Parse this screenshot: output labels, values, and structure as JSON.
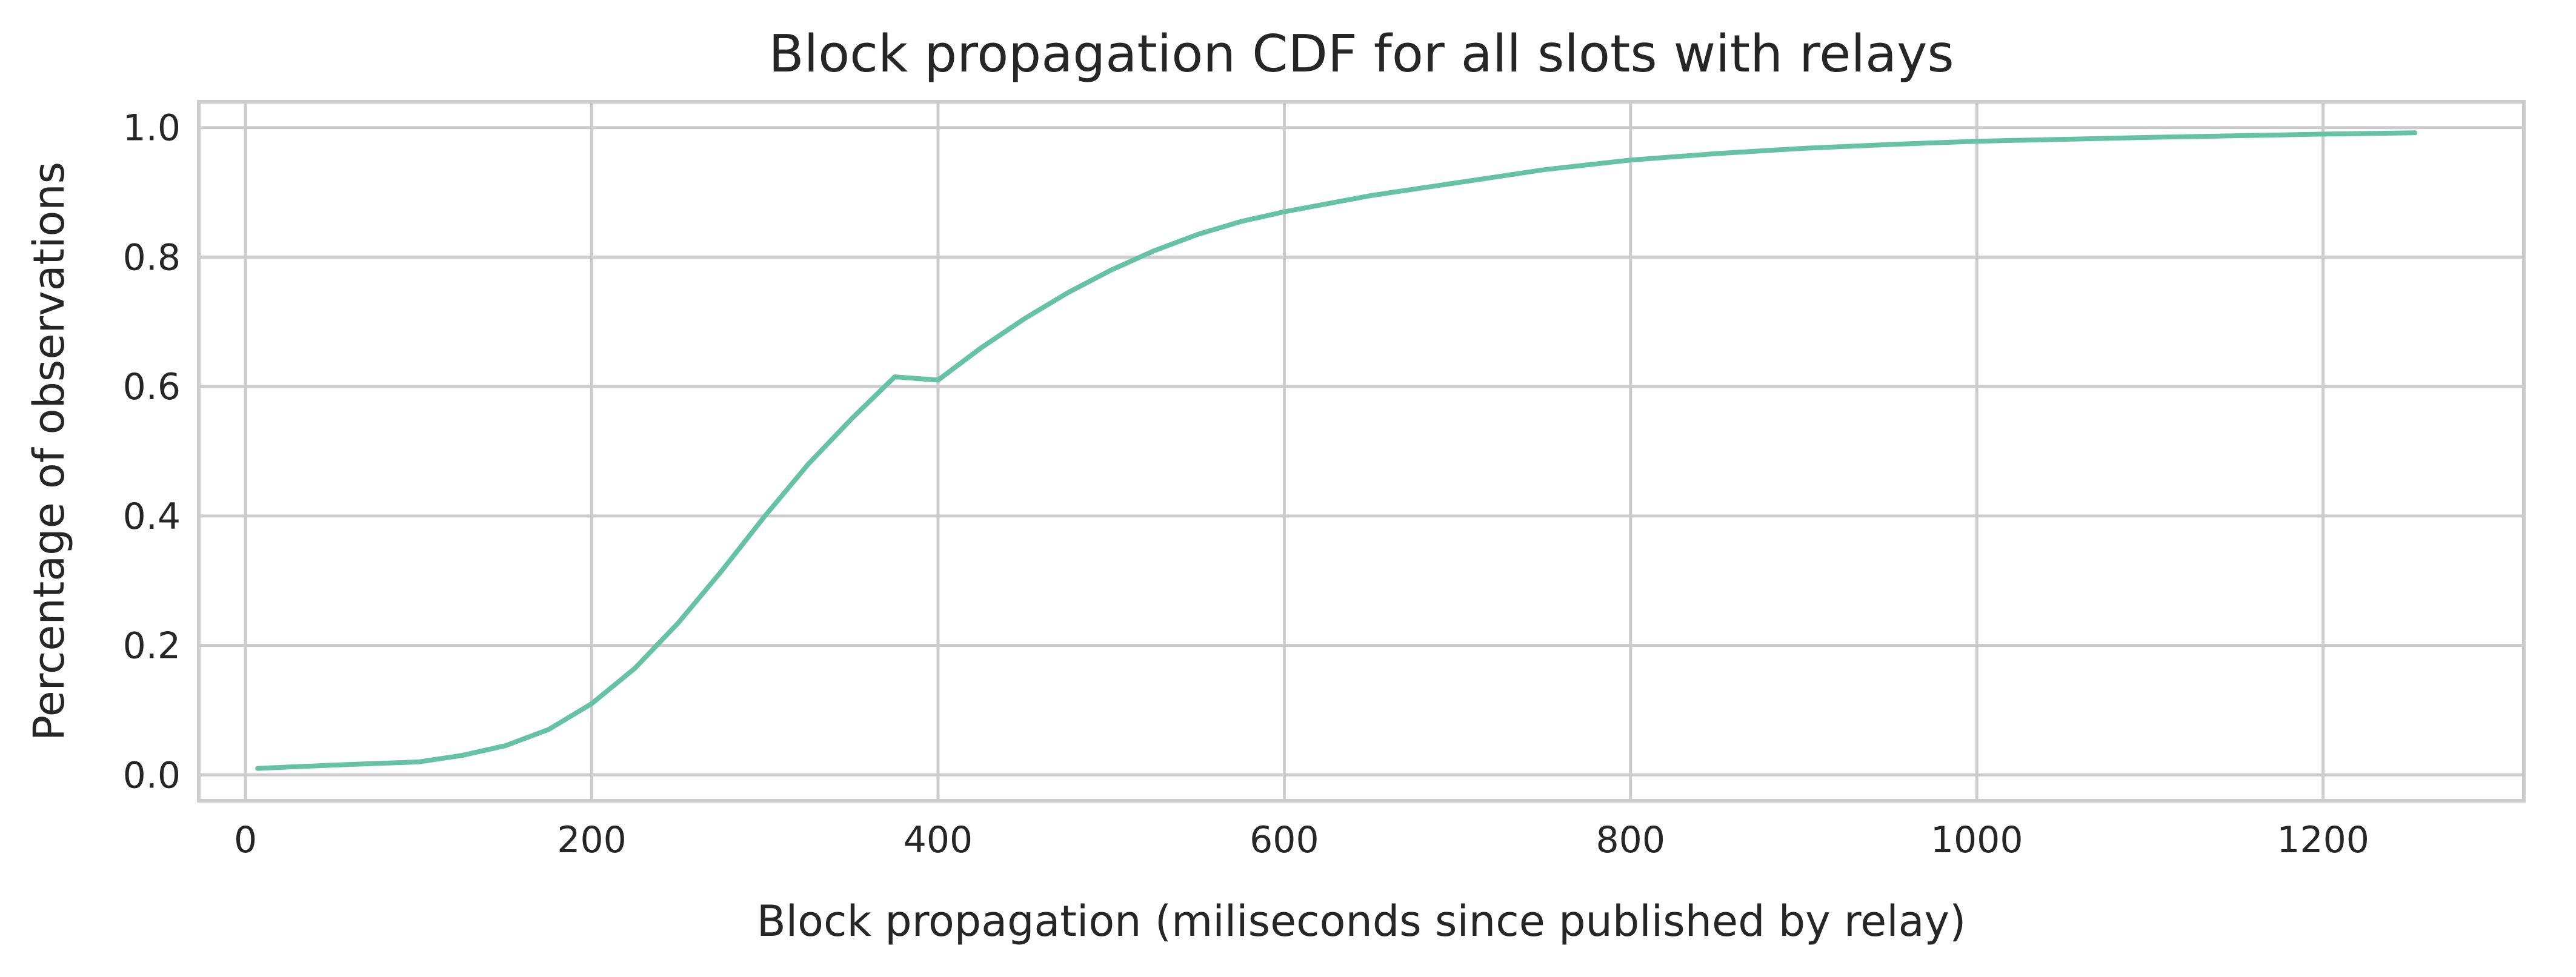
{
  "chart_data": {
    "type": "line",
    "title": "Block propagation CDF for all slots with relays",
    "xlabel": "Block propagation (miliseconds since published by relay)",
    "ylabel": "Percentage of observations",
    "xlim": [
      -27,
      1316
    ],
    "ylim": [
      -0.04,
      1.04
    ],
    "xticks": [
      0,
      200,
      400,
      600,
      800,
      1000,
      1200
    ],
    "xtick_labels": [
      "0",
      "200",
      "400",
      "600",
      "800",
      "1000",
      "1200"
    ],
    "yticks": [
      0.0,
      0.2,
      0.4,
      0.6,
      0.8,
      1.0
    ],
    "ytick_labels": [
      "0.0",
      "0.2",
      "0.4",
      "0.6",
      "0.8",
      "1.0"
    ],
    "grid": true,
    "colors": {
      "line": "#66c2a5"
    },
    "series": [
      {
        "x": [
          7,
          50,
          100,
          125,
          150,
          175,
          200,
          225,
          250,
          275,
          300,
          325,
          350,
          375,
          400,
          425,
          450,
          475,
          500,
          525,
          550,
          575,
          600,
          650,
          700,
          750,
          800,
          850,
          900,
          950,
          1000,
          1100,
          1200,
          1253
        ],
        "y": [
          0.01,
          0.015,
          0.02,
          0.03,
          0.045,
          0.07,
          0.11,
          0.165,
          0.235,
          0.315,
          0.4,
          0.48,
          0.55,
          0.615,
          0.61,
          0.66,
          0.705,
          0.745,
          0.78,
          0.81,
          0.835,
          0.855,
          0.87,
          0.895,
          0.915,
          0.935,
          0.95,
          0.96,
          0.968,
          0.974,
          0.979,
          0.985,
          0.99,
          0.992
        ]
      }
    ]
  }
}
